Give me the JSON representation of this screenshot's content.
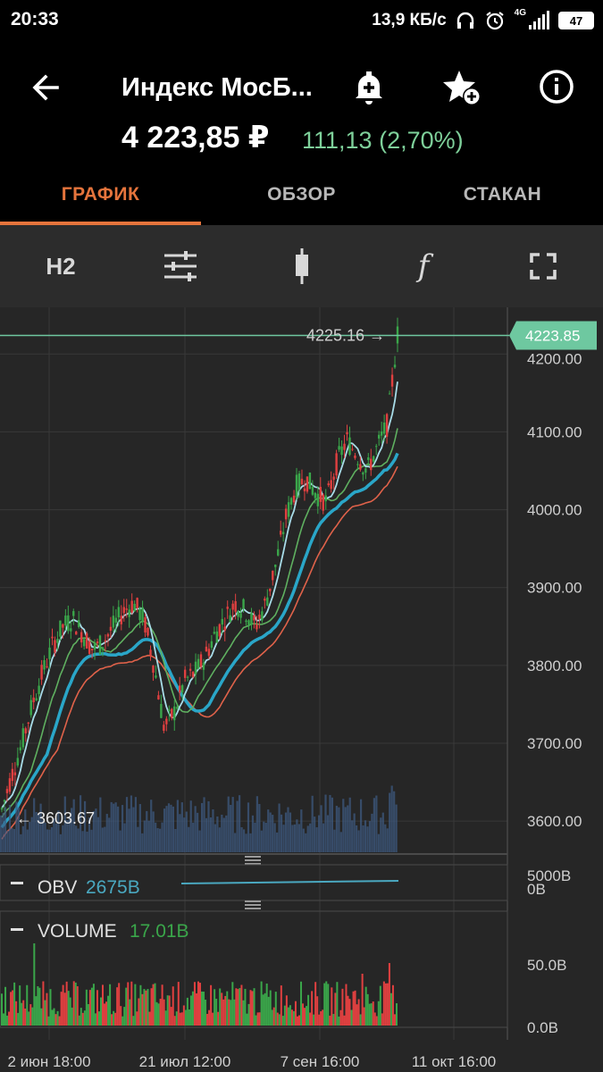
{
  "status": {
    "time": "20:33",
    "network_speed": "13,9 КБ/с",
    "network_type": "4G",
    "battery": "47"
  },
  "header": {
    "title": "Индекс МосБ...",
    "price": "4 223,85 ₽",
    "change": "111,13 (2,70%)"
  },
  "tabs": [
    "ГРАФИК",
    "ОБЗОР",
    "СТАКАН"
  ],
  "toolbar": {
    "timeframe": "H2",
    "indicators_icon": "sliders-icon",
    "chart_type_icon": "candlestick-icon",
    "function_label": "f",
    "fullscreen_icon": "fullscreen-icon"
  },
  "colors": {
    "up": "#3aa64a",
    "down": "#e04040",
    "accent": "#e5743c",
    "price_line": "#6ec8a0",
    "obv": "#4aa8c0",
    "volume_label": "#3aa64a"
  },
  "chart_data": [
    {
      "type": "line",
      "title": "",
      "current_price_label": "4223.85",
      "max_marker_label": "4225.16",
      "min_marker_label": "3603.67",
      "y_ticks": [
        "4200.00",
        "4100.00",
        "4000.00",
        "3900.00",
        "3800.00",
        "3700.00",
        "3600.00"
      ],
      "ylim": [
        3560,
        4260
      ],
      "x_ticks": [
        "2 июн 18:00",
        "21 июл 12:00",
        "7 сен 16:00",
        "11 окт 16:00"
      ],
      "series": [
        {
          "values": [
            3615,
            3660,
            3700,
            3750,
            3790,
            3825,
            3850,
            3860,
            3840,
            3820,
            3830,
            3850,
            3870,
            3880,
            3860,
            3800,
            3720,
            3740,
            3780,
            3790,
            3810,
            3840,
            3860,
            3880,
            3870,
            3850,
            3880,
            3930,
            3990,
            4030,
            4040,
            4020,
            4010,
            4060,
            4090,
            4070,
            4050,
            4080,
            4110,
            4225
          ]
        }
      ]
    },
    {
      "type": "line",
      "title": "OBV",
      "value_label": "2675B",
      "y_ticks": [
        "5000B",
        "0B"
      ]
    },
    {
      "type": "bar",
      "title": "VOLUME",
      "value_label": "17.01B",
      "y_ticks": [
        "50.0B",
        "0.0B"
      ]
    }
  ]
}
